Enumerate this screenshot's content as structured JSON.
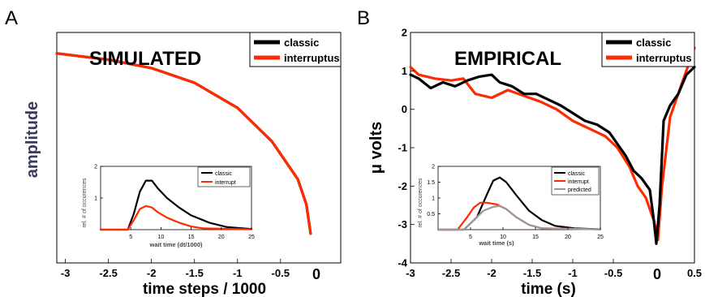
{
  "panels": {
    "A": {
      "letter": "A",
      "heading": "SIMULATED",
      "ylabel": "amplitude",
      "xlabel": "time steps / 1000",
      "zero_label": "0"
    },
    "B": {
      "letter": "B",
      "heading": "EMPIRICAL",
      "ylabel": "μ volts",
      "xlabel": "time (s)",
      "zero_label": "0"
    }
  },
  "colors": {
    "classic": "#000000",
    "interruptus": "#ff2a00",
    "predicted": "#999999",
    "ylabel_A": "#3a3a5a"
  },
  "chart_data": [
    {
      "id": "A-main",
      "type": "line",
      "title": "SIMULATED",
      "xlabel": "time steps / 1000",
      "ylabel": "amplitude",
      "xlim": [
        -3.1,
        0.2
      ],
      "ylim": [
        0,
        1.1
      ],
      "xticks": [
        -3,
        -2.5,
        -2,
        -1.5,
        -1,
        -0.5
      ],
      "xtick_labels": [
        "-3",
        "-2.5",
        "-2",
        "-1.5",
        "-1",
        "-0.5"
      ],
      "legend": {
        "position": "top-right",
        "entries": [
          "classic",
          "interruptus"
        ]
      },
      "series": [
        {
          "name": "classic",
          "color": "#000000",
          "x": [
            -3.1,
            -2.5,
            -2.0,
            -1.5,
            -1.0,
            -0.6,
            -0.3,
            -0.2,
            -0.15
          ],
          "y": [
            1.0,
            0.97,
            0.93,
            0.86,
            0.74,
            0.58,
            0.4,
            0.28,
            0.14
          ]
        },
        {
          "name": "interruptus",
          "color": "#ff2a00",
          "x": [
            -3.1,
            -2.5,
            -2.0,
            -1.5,
            -1.0,
            -0.6,
            -0.3,
            -0.2,
            -0.15
          ],
          "y": [
            1.0,
            0.97,
            0.93,
            0.86,
            0.74,
            0.58,
            0.4,
            0.28,
            0.14
          ]
        }
      ]
    },
    {
      "id": "A-inset",
      "type": "line",
      "xlabel": "wait time (dt/1000)",
      "ylabel": "rel. # of occurences",
      "xlim": [
        0,
        25
      ],
      "ylim": [
        0,
        2
      ],
      "xticks": [
        5,
        10,
        15,
        20,
        25
      ],
      "yticks": [
        1,
        2
      ],
      "legend": {
        "position": "top-right",
        "entries": [
          "classic",
          "interrupt"
        ]
      },
      "series": [
        {
          "name": "classic",
          "color": "#000000",
          "x": [
            0,
            4.5,
            5.5,
            6.5,
            7.5,
            8.5,
            9.5,
            11,
            13,
            15,
            18,
            21,
            25
          ],
          "y": [
            0,
            0,
            0.5,
            1.2,
            1.55,
            1.55,
            1.3,
            1.0,
            0.7,
            0.45,
            0.22,
            0.08,
            0.02
          ]
        },
        {
          "name": "interrupt",
          "color": "#ff2a00",
          "x": [
            0,
            4.5,
            5.5,
            6.5,
            7.5,
            8.5,
            9.5,
            11,
            13,
            15,
            17,
            25
          ],
          "y": [
            0,
            0,
            0.3,
            0.65,
            0.75,
            0.7,
            0.55,
            0.38,
            0.22,
            0.1,
            0.04,
            0.01
          ]
        }
      ]
    },
    {
      "id": "B-main",
      "type": "line",
      "title": "EMPIRICAL",
      "xlabel": "time (s)",
      "ylabel": "μ volts",
      "xlim": [
        -3,
        0.5
      ],
      "ylim": [
        -4,
        2
      ],
      "xticks": [
        -3,
        -2.5,
        -2,
        -1.5,
        -1,
        -0.5,
        0.5
      ],
      "xtick_labels": [
        "-3",
        "-2.5",
        "-2",
        "-1.5",
        "-1",
        "-0.5",
        "0.5"
      ],
      "yticks": [
        -4,
        -3,
        -2,
        -1,
        0,
        1,
        2
      ],
      "ytick_labels": [
        "-4",
        "-3",
        "-2",
        "-1",
        "0",
        "1",
        "2"
      ],
      "legend": {
        "position": "top-right",
        "entries": [
          "classic",
          "interruptus"
        ]
      },
      "series": [
        {
          "name": "interruptus",
          "color": "#ff2a00",
          "x": [
            -3,
            -2.9,
            -2.7,
            -2.5,
            -2.35,
            -2.2,
            -2.0,
            -1.8,
            -1.6,
            -1.4,
            -1.2,
            -1.0,
            -0.8,
            -0.6,
            -0.45,
            -0.3,
            -0.2,
            -0.1,
            0.0,
            0.05,
            0.1,
            0.2,
            0.3,
            0.4,
            0.5
          ],
          "y": [
            1.1,
            0.9,
            0.8,
            0.75,
            0.8,
            0.4,
            0.3,
            0.5,
            0.35,
            0.2,
            0.0,
            -0.3,
            -0.5,
            -0.7,
            -1.0,
            -1.5,
            -2.0,
            -2.3,
            -2.9,
            -3.4,
            -2.0,
            -0.2,
            0.4,
            1.0,
            1.6
          ]
        },
        {
          "name": "classic",
          "color": "#000000",
          "x": [
            -3,
            -2.9,
            -2.75,
            -2.6,
            -2.45,
            -2.3,
            -2.15,
            -2.0,
            -1.9,
            -1.75,
            -1.6,
            -1.45,
            -1.3,
            -1.15,
            -1.0,
            -0.85,
            -0.7,
            -0.55,
            -0.45,
            -0.35,
            -0.25,
            -0.15,
            -0.05,
            0.0,
            0.03,
            0.07,
            0.12,
            0.2,
            0.3,
            0.4,
            0.5
          ],
          "y": [
            0.9,
            0.8,
            0.55,
            0.7,
            0.6,
            0.75,
            0.85,
            0.9,
            0.7,
            0.6,
            0.4,
            0.4,
            0.25,
            0.1,
            -0.1,
            -0.3,
            -0.4,
            -0.6,
            -0.9,
            -1.2,
            -1.6,
            -1.8,
            -2.1,
            -2.9,
            -3.5,
            -2.5,
            -0.3,
            0.1,
            0.4,
            0.9,
            1.1
          ]
        }
      ]
    },
    {
      "id": "B-inset",
      "type": "line",
      "xlabel": "wait time (s)",
      "ylabel": "rel. # of occurences",
      "xlim": [
        0,
        25
      ],
      "ylim": [
        0,
        2
      ],
      "xticks": [
        5,
        10,
        15,
        20,
        25
      ],
      "yticks": [
        0.5,
        1,
        1.5,
        2
      ],
      "ytick_labels": [
        "0.5",
        "1",
        "1.5",
        "2"
      ],
      "legend": {
        "position": "top-right",
        "entries": [
          "classic",
          "interrupt",
          "predicted"
        ]
      },
      "series": [
        {
          "name": "classic",
          "color": "#000000",
          "x": [
            0,
            4,
            6,
            7.5,
            8.5,
            9.5,
            10.5,
            12,
            14,
            16,
            18,
            21,
            25
          ],
          "y": [
            0,
            0,
            0.4,
            1.1,
            1.55,
            1.65,
            1.5,
            1.1,
            0.6,
            0.3,
            0.12,
            0.04,
            0.01
          ]
        },
        {
          "name": "interrupt",
          "color": "#ff2a00",
          "x": [
            0,
            3,
            4.5,
            5.5,
            6.5,
            7.5,
            9,
            10.5,
            12,
            14,
            16,
            25
          ],
          "y": [
            0,
            0,
            0.4,
            0.7,
            0.85,
            0.85,
            0.8,
            0.65,
            0.4,
            0.15,
            0.04,
            0.01
          ]
        },
        {
          "name": "predicted",
          "color": "#999999",
          "x": [
            0,
            4,
            5.5,
            7,
            8.5,
            9.5,
            10.5,
            12,
            14,
            16,
            25
          ],
          "y": [
            0,
            0,
            0.3,
            0.6,
            0.72,
            0.75,
            0.65,
            0.4,
            0.15,
            0.04,
            0.01
          ]
        }
      ]
    }
  ]
}
